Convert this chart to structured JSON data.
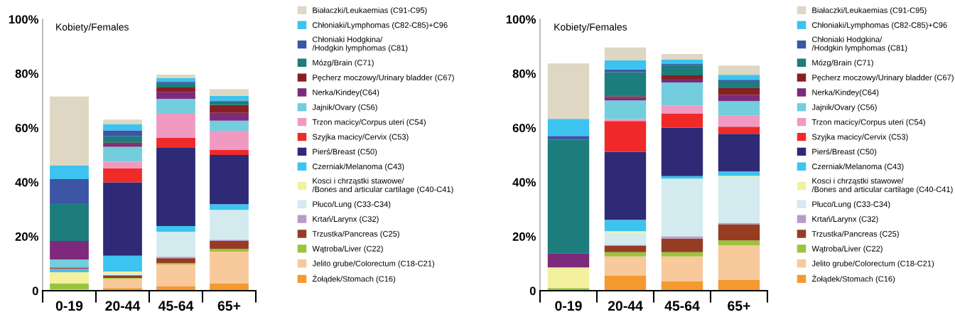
{
  "chart_data": [
    {
      "type": "bar",
      "stacked": true,
      "title": "Kobiety/Females",
      "categories": [
        "0-19",
        "20-44",
        "45-64",
        "65+"
      ],
      "ylim": [
        0,
        100
      ],
      "yticks": [
        {
          "value": 0,
          "label": "0"
        },
        {
          "value": 20,
          "label": "20%"
        },
        {
          "value": 40,
          "label": "40%"
        },
        {
          "value": 60,
          "label": "60%"
        },
        {
          "value": 80,
          "label": "80%"
        },
        {
          "value": 100,
          "label": "100%"
        }
      ],
      "grid": false,
      "legend": "right",
      "series": [
        {
          "name": "Żołądek/Stomach (C16)",
          "color": "#f49a2f",
          "values": [
            0,
            1.0,
            1.6,
            2.6
          ]
        },
        {
          "name": "Jelito grube/Colorectum (C18-C21)",
          "color": "#f8c99b",
          "values": [
            0.5,
            3.4,
            8.1,
            11.8
          ]
        },
        {
          "name": "Wątroba/Liver (C22)",
          "color": "#99c43e",
          "values": [
            2.1,
            0.3,
            0.5,
            1.0
          ]
        },
        {
          "name": "Trzustka/Pancreas (C25)",
          "color": "#963c22",
          "values": [
            0,
            1.0,
            1.8,
            2.9
          ]
        },
        {
          "name": "Krtań/Larynx (C32)",
          "color": "#b99ac9",
          "values": [
            0,
            null,
            0.5,
            0.5
          ]
        },
        {
          "name": "Płuco/Lung (C33-C34)",
          "color": "#d3ebef",
          "values": [
            0,
            0.6,
            9.2,
            11.0
          ]
        },
        {
          "name": "Kosci i chrząstki stawowe/\n/Bones and articular cartilage (C40-C41)",
          "color": "#f3f09e",
          "values": [
            4.2,
            0.8,
            0,
            0
          ]
        },
        {
          "name": "Czerniak/Melanoma (C43)",
          "color": "#3cc3ef",
          "values": [
            1.3,
            5.8,
            2.1,
            2.1
          ]
        },
        {
          "name": "Pierś/Breast (C50)",
          "color": "#2e2a76",
          "values": [
            0,
            27.0,
            28.8,
            18.1
          ]
        },
        {
          "name": "Szyjka macicy/Cervix (C53)",
          "color": "#ef2a29",
          "values": [
            0.5,
            5.2,
            3.7,
            1.8
          ]
        },
        {
          "name": "Trzon macicy/Corpus uteri (C54)",
          "color": "#f09ac1",
          "values": [
            0,
            2.4,
            8.9,
            7.1
          ]
        },
        {
          "name": "Jajnik/Ovary (C56)",
          "color": "#72cedc",
          "values": [
            2.9,
            5.5,
            5.5,
            3.7
          ]
        },
        {
          "name": "Nerka/Kindey(C64)",
          "color": "#7d2a7c",
          "values": [
            6.8,
            1.0,
            2.4,
            2.9
          ]
        },
        {
          "name": "Pęcherz moczowy/Urinary bladder (C67)",
          "color": "#862022",
          "values": [
            0,
            0.5,
            1.8,
            2.9
          ]
        },
        {
          "name": "Mózg/Brain (C71)",
          "color": "#1c7d7c",
          "values": [
            13.9,
            2.4,
            1.6,
            1.3
          ]
        },
        {
          "name": "Chłoniaki Hodgkina/\n/Hodgkin lymphomas (C81)",
          "color": "#3c55a5",
          "values": [
            8.9,
            2.1,
            0.5,
            0.3
          ]
        },
        {
          "name": "Chłoniaki/Lymphomas (C82-C85)+C96",
          "color": "#3cc3ef",
          "values": [
            5.0,
            2.4,
            1.3,
            1.8
          ]
        },
        {
          "name": "Białaczki/Leukaemias (C91-C95)",
          "color": "#ddd7c3",
          "values": [
            25.4,
            1.6,
            1.3,
            2.4
          ]
        }
      ]
    },
    {
      "type": "bar",
      "stacked": true,
      "title": "Kobiety/Females",
      "categories": [
        "0-19",
        "20-44",
        "45-64",
        "65+"
      ],
      "ylim": [
        0,
        100
      ],
      "yticks": [
        {
          "value": 0,
          "label": "0"
        },
        {
          "value": 20,
          "label": "20%"
        },
        {
          "value": 40,
          "label": "40%"
        },
        {
          "value": 60,
          "label": "60%"
        },
        {
          "value": 80,
          "label": "80%"
        },
        {
          "value": 100,
          "label": "100%"
        }
      ],
      "grid": false,
      "legend": "right",
      "series": [
        {
          "name": "Żołądek/Stomach (C16)",
          "color": "#f49a2f",
          "values": [
            0,
            5.5,
            3.4,
            3.9
          ]
        },
        {
          "name": "Jelito grube/Colorectum (C18-C21)",
          "color": "#f8c99b",
          "values": [
            0,
            7.1,
            9.2,
            12.8
          ]
        },
        {
          "name": "Wątroba/Liver (C22)",
          "color": "#99c43e",
          "values": [
            1.0,
            1.6,
            1.6,
            1.8
          ]
        },
        {
          "name": "Trzustka/Pancreas (C25)",
          "color": "#963c22",
          "values": [
            0,
            2.4,
            5.0,
            6.0
          ]
        },
        {
          "name": "Krtań/Larynx (C32)",
          "color": "#b99ac9",
          "values": [
            0,
            0.3,
            0.8,
            0.5
          ]
        },
        {
          "name": "Płuco/Lung (C33-C34)",
          "color": "#d3ebef",
          "values": [
            0,
            4.5,
            20.9,
            17.0
          ]
        },
        {
          "name": "Kosci i chrząstki stawowe/\n/Bones and articular cartilage (C40-C41)",
          "color": "#f3f09e",
          "values": [
            7.6,
            0.5,
            0.3,
            0.3
          ]
        },
        {
          "name": "Czerniak/Melanoma (C43)",
          "color": "#3cc3ef",
          "values": [
            0,
            4.2,
            1.0,
            1.6
          ]
        },
        {
          "name": "Pierś/Breast (C50)",
          "color": "#2e2a76",
          "values": [
            0,
            25.1,
            17.8,
            13.9
          ]
        },
        {
          "name": "Szyjka macicy/Cervix (C53)",
          "color": "#ef2a29",
          "values": [
            0,
            11.3,
            5.2,
            2.6
          ]
        },
        {
          "name": "Trzon macicy/Corpus uteri (C54)",
          "color": "#f09ac1",
          "values": [
            0,
            0.8,
            2.9,
            4.2
          ]
        },
        {
          "name": "Jajnik/Ovary (C56)",
          "color": "#72cedc",
          "values": [
            0,
            6.8,
            8.6,
            5.2
          ]
        },
        {
          "name": "Nerka/Kindey(C64)",
          "color": "#7d2a7c",
          "values": [
            5.2,
            1.0,
            1.3,
            2.4
          ]
        },
        {
          "name": "Pęcherz moczowy/Urinary bladder (C67)",
          "color": "#862022",
          "values": [
            0,
            0.5,
            1.3,
            2.4
          ]
        },
        {
          "name": "Mózg/Brain (C71)",
          "color": "#1c7d7c",
          "values": [
            41.9,
            8.9,
            3.9,
            2.6
          ]
        },
        {
          "name": "Chłoniaki Hodgkina/\n/Hodgkin lymphomas (C81)",
          "color": "#3c55a5",
          "values": [
            1.3,
            1.0,
            0.3,
            0.5
          ]
        },
        {
          "name": "Chłoniaki/Lymphomas (C82-C85)+C96",
          "color": "#3cc3ef",
          "values": [
            6.3,
            3.4,
            1.6,
            1.8
          ]
        },
        {
          "name": "Białaczki/Leukaemias (C91-C95)",
          "color": "#ddd7c3",
          "values": [
            20.4,
            4.7,
            2.1,
            3.4
          ]
        }
      ]
    }
  ]
}
